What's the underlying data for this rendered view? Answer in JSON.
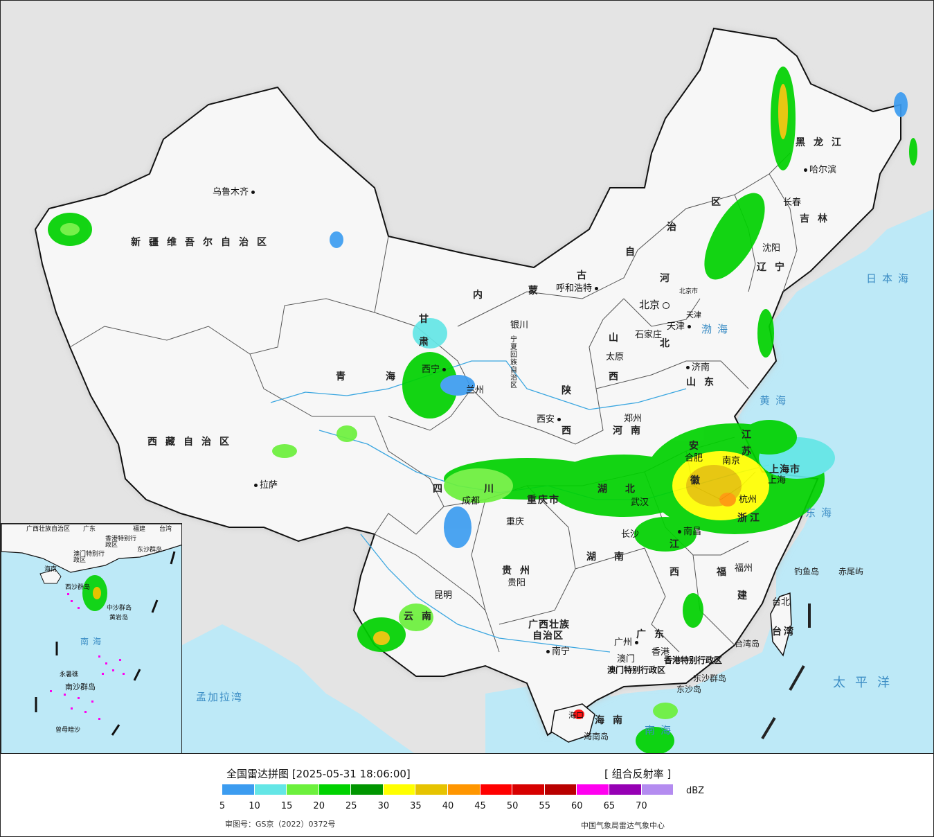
{
  "header": {
    "title": "全国雷达拼图 [2025-05-31 18:06:00]",
    "product": "[ 组合反射率 ]",
    "unit": "dBZ",
    "approval": "审图号：GS京（2022）0372号",
    "agency": "中国气象局雷达气象中心"
  },
  "legend": {
    "colors": [
      "#3c9cf0",
      "#64e6e6",
      "#6cf03c",
      "#00d200",
      "#009600",
      "#ffff00",
      "#e6c300",
      "#ff9600",
      "#ff0000",
      "#d70000",
      "#b90000",
      "#ff00f0",
      "#9600b4",
      "#b48cf0"
    ],
    "ticks": [
      "5",
      "10",
      "15",
      "20",
      "25",
      "30",
      "35",
      "40",
      "45",
      "50",
      "55",
      "60",
      "65",
      "70"
    ]
  },
  "provinces": {
    "xinjiang": "新疆维吾尔自治区",
    "xizang": "西藏自治区",
    "qinghai_1": "青",
    "qinghai_2": "海",
    "gansu": "甘",
    "neimenggu_1": "内",
    "neimenggu_2": "蒙",
    "neimenggu_3": "古",
    "neimenggu_4": "自",
    "neimenggu_5": "治",
    "neimenggu_6": "区",
    "heilongjiang": "黑龙江",
    "jilin": "吉林",
    "liaoning": "辽宁",
    "hebei_1": "河",
    "hebei_2": "北",
    "shanxi_1": "山",
    "shanxi_2": "西",
    "shandong": "山东",
    "henan": "河南",
    "shaanxi_1": "陕",
    "shaanxi_2": "西",
    "sichuan_1": "四",
    "sichuan_2": "川",
    "chongqing": "重庆市",
    "hubei_1": "湖",
    "hubei_2": "北",
    "hunan_1": "湖",
    "hunan_2": "南",
    "anhui_1": "安",
    "anhui_2": "徽",
    "jiangsu_1": "江",
    "jiangsu_2": "苏",
    "zhejiang": "浙江",
    "jiangxi_1": "江",
    "jiangxi_2": "西",
    "fujian_1": "福",
    "fujian_2": "建",
    "guizhou": "贵州",
    "yunnan": "云南",
    "guangxi_1": "广西壮族",
    "guangxi_2": "自治区",
    "guangdong": "广东",
    "hainan": "海南",
    "taiwan": "台湾",
    "shanghai": "上海市",
    "ningxia": "宁夏回族自治区",
    "gansu_2": "肃",
    "tianjin": "天津",
    "beijing_small": "北京市",
    "hk": "香港特别行政区",
    "macao": "澳门特别行政区"
  },
  "cities": {
    "urumqi": "乌鲁木齐",
    "lhasa": "拉萨",
    "xining": "西宁",
    "lanzhou": "兰州",
    "yinchuan": "银川",
    "hohhot": "呼和浩特",
    "beijing": "北京",
    "tianjin": "天津",
    "shijiazhuang": "石家庄",
    "taiyuan": "太原",
    "jinan": "济南",
    "zhengzhou": "郑州",
    "xian": "西安",
    "chengdu": "成都",
    "chongqing": "重庆",
    "wuhan": "武汉",
    "hefei": "合肥",
    "nanjing": "南京",
    "shanghai": "上海",
    "hangzhou": "杭州",
    "nanchang": "南昌",
    "changsha": "长沙",
    "fuzhou": "福州",
    "guiyang": "贵阳",
    "kunming": "昆明",
    "nanning": "南宁",
    "guangzhou": "广州",
    "hongkong": "香港",
    "macau": "澳门",
    "haikou": "海口",
    "taibei": "台北",
    "shenyang": "沈阳",
    "changchun": "长春",
    "harbin": "哈尔滨"
  },
  "seas": {
    "japan_sea": "日本海",
    "bohai": "渤海",
    "yellow_sea": "黄海",
    "east_sea": "东海",
    "pacific": "太平洋",
    "south_sea": "南海",
    "bengal": "孟加拉湾"
  },
  "islands": {
    "diaoyu": "钓鱼岛",
    "chiwei": "赤尾屿",
    "taiwan_island": "台湾岛",
    "dongsha": "东沙群岛",
    "dongsha_island": "东沙岛",
    "hainan_island": "海南岛"
  },
  "inset": {
    "guangxi": "广西壮族自治区",
    "guangdong": "广东",
    "fujian": "福建",
    "taiwan": "台湾",
    "hk": "香港特别行政区",
    "macao": "澳门特别行政区",
    "dongsha": "东沙群岛",
    "hainan": "海南",
    "xisha": "西沙群岛",
    "zhongsha": "中沙群岛",
    "huangyan": "黄岩岛",
    "south_sea": "南海",
    "yongshu": "永暑礁",
    "nansha": "南沙群岛",
    "zengmu": "曾母暗沙"
  }
}
